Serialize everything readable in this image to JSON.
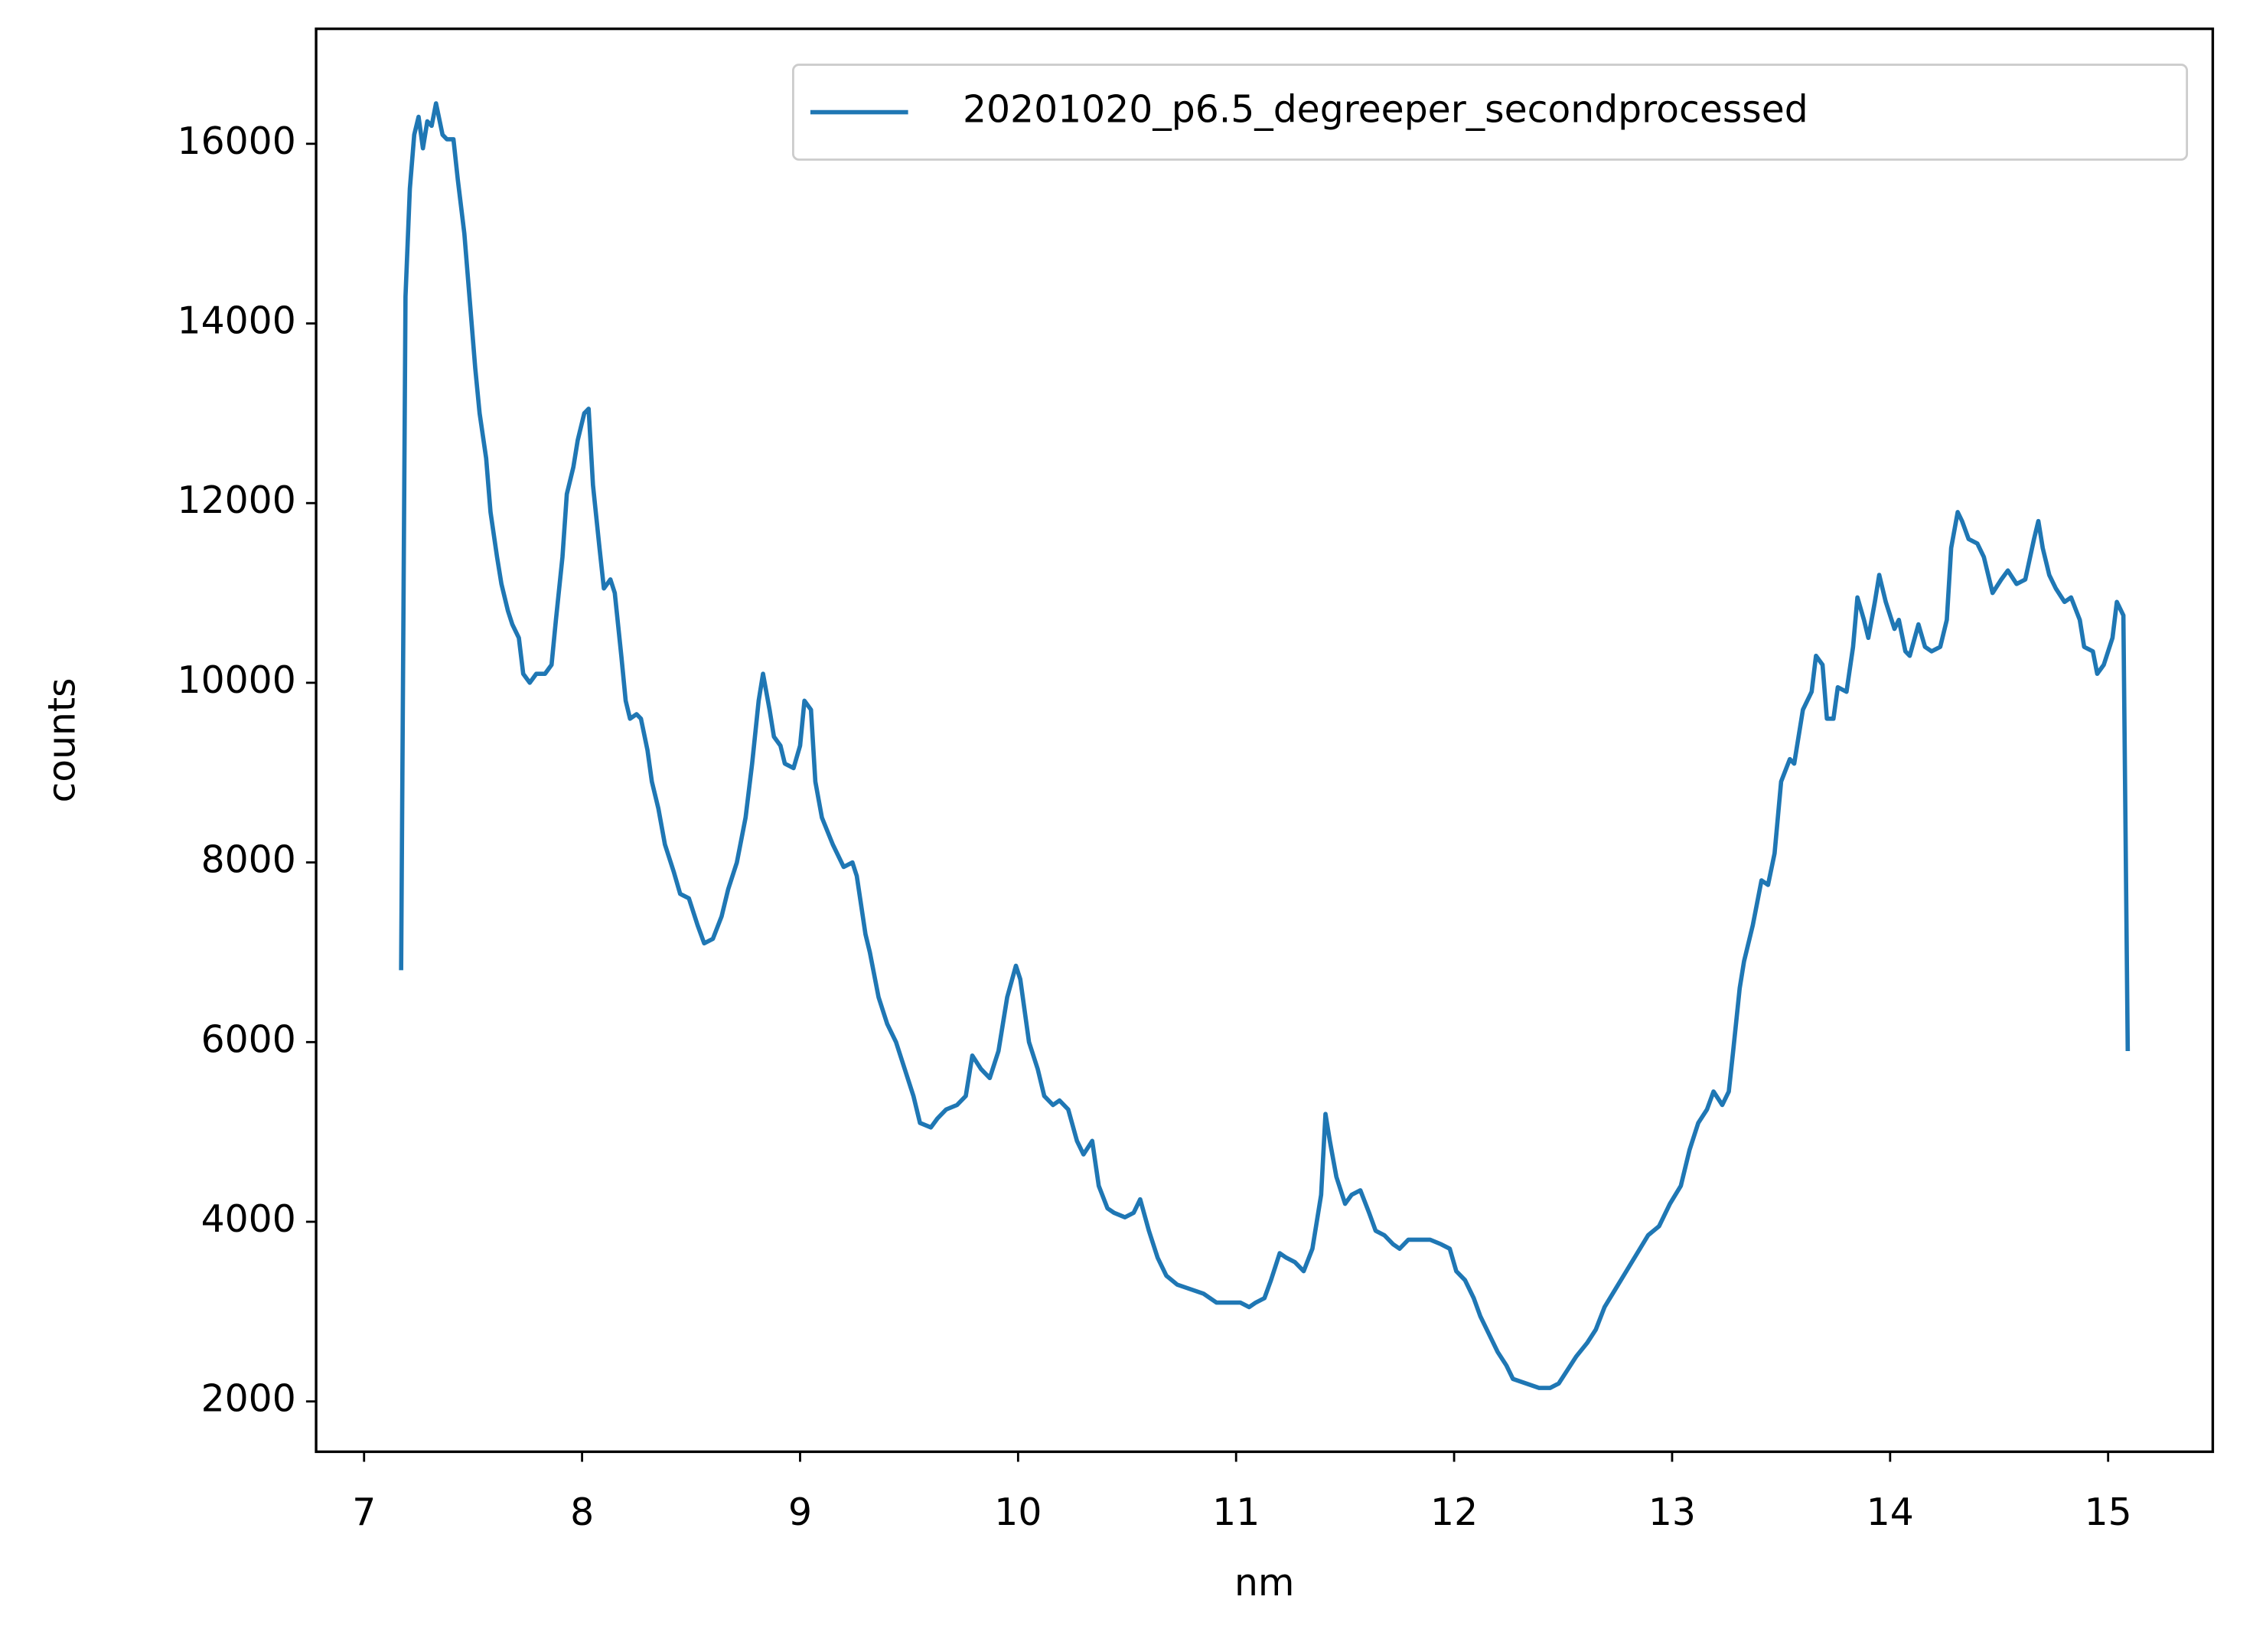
{
  "chart_data": {
    "type": "line",
    "xlabel": "nm",
    "ylabel": "counts",
    "x": [
      7.17,
      7.19,
      7.21,
      7.23,
      7.25,
      7.27,
      7.29,
      7.31,
      7.33,
      7.36,
      7.38,
      7.41,
      7.43,
      7.46,
      7.48,
      7.51,
      7.53,
      7.56,
      7.58,
      7.61,
      7.63,
      7.66,
      7.68,
      7.71,
      7.73,
      7.76,
      7.79,
      7.83,
      7.86,
      7.88,
      7.91,
      7.93,
      7.96,
      7.98,
      8.01,
      8.03,
      8.05,
      8.08,
      8.1,
      8.13,
      8.15,
      8.18,
      8.2,
      8.22,
      8.25,
      8.27,
      8.3,
      8.32,
      8.35,
      8.38,
      8.42,
      8.45,
      8.49,
      8.53,
      8.56,
      8.6,
      8.64,
      8.67,
      8.71,
      8.75,
      8.78,
      8.81,
      8.83,
      8.86,
      8.88,
      8.91,
      8.93,
      8.97,
      9.0,
      9.02,
      9.05,
      9.07,
      9.1,
      9.15,
      9.2,
      9.24,
      9.26,
      9.3,
      9.32,
      9.36,
      9.4,
      9.44,
      9.48,
      9.52,
      9.55,
      9.6,
      9.63,
      9.67,
      9.72,
      9.76,
      9.79,
      9.83,
      9.87,
      9.91,
      9.95,
      9.99,
      10.01,
      10.05,
      10.09,
      10.12,
      10.16,
      10.19,
      10.23,
      10.27,
      10.3,
      10.34,
      10.37,
      10.41,
      10.44,
      10.49,
      10.53,
      10.56,
      10.6,
      10.64,
      10.68,
      10.73,
      10.79,
      10.85,
      10.91,
      10.97,
      11.02,
      11.06,
      11.09,
      11.13,
      11.16,
      11.2,
      11.23,
      11.27,
      11.31,
      11.35,
      11.39,
      11.41,
      11.43,
      11.46,
      11.5,
      11.53,
      11.57,
      11.61,
      11.64,
      11.68,
      11.72,
      11.75,
      11.79,
      11.84,
      11.89,
      11.94,
      11.98,
      12.01,
      12.05,
      12.09,
      12.12,
      12.16,
      12.2,
      12.24,
      12.27,
      12.33,
      12.39,
      12.44,
      12.48,
      12.52,
      12.56,
      12.61,
      12.65,
      12.69,
      12.74,
      12.79,
      12.84,
      12.89,
      12.94,
      12.99,
      13.04,
      13.08,
      13.12,
      13.16,
      13.19,
      13.23,
      13.26,
      13.28,
      13.31,
      13.33,
      13.37,
      13.41,
      13.44,
      13.47,
      13.5,
      13.54,
      13.56,
      13.6,
      13.64,
      13.66,
      13.69,
      13.71,
      13.74,
      13.76,
      13.8,
      13.83,
      13.85,
      13.88,
      13.9,
      13.93,
      13.95,
      13.98,
      14.02,
      14.04,
      14.07,
      14.09,
      14.13,
      14.16,
      14.19,
      14.23,
      14.26,
      14.28,
      14.31,
      14.33,
      14.36,
      14.4,
      14.43,
      14.47,
      14.51,
      14.54,
      14.58,
      14.62,
      14.66,
      14.68,
      14.7,
      14.73,
      14.76,
      14.8,
      14.83,
      14.87,
      14.89,
      14.93,
      14.95,
      14.98,
      15.02,
      15.04,
      15.07,
      15.09
    ],
    "series": [
      {
        "name": "20201020_p6.5_degreeper_secondprocessed",
        "color": "#1f77b4",
        "values": [
          6800,
          14300,
          15500,
          16100,
          16300,
          15950,
          16250,
          16200,
          16450,
          16100,
          16050,
          16050,
          15600,
          15000,
          14400,
          13500,
          13000,
          12500,
          11900,
          11400,
          11100,
          10800,
          10650,
          10500,
          10100,
          10000,
          10100,
          10100,
          10200,
          10700,
          11400,
          12100,
          12400,
          12700,
          13000,
          13050,
          12200,
          11500,
          11050,
          11150,
          11000,
          10300,
          9800,
          9600,
          9650,
          9600,
          9250,
          8900,
          8600,
          8200,
          7900,
          7650,
          7600,
          7300,
          7100,
          7150,
          7400,
          7700,
          8000,
          8500,
          9100,
          9800,
          10100,
          9700,
          9400,
          9300,
          9100,
          9050,
          9300,
          9800,
          9700,
          8900,
          8500,
          8200,
          7950,
          8000,
          7850,
          7200,
          7000,
          6500,
          6200,
          6000,
          5700,
          5400,
          5100,
          5050,
          5150,
          5250,
          5300,
          5400,
          5850,
          5700,
          5600,
          5900,
          6500,
          6850,
          6700,
          6000,
          5700,
          5400,
          5300,
          5350,
          5250,
          4900,
          4750,
          4900,
          4400,
          4150,
          4100,
          4050,
          4100,
          4250,
          3900,
          3600,
          3400,
          3300,
          3250,
          3200,
          3100,
          3100,
          3100,
          3050,
          3100,
          3150,
          3350,
          3650,
          3600,
          3550,
          3450,
          3700,
          4300,
          5200,
          4900,
          4500,
          4200,
          4300,
          4350,
          4100,
          3900,
          3850,
          3750,
          3700,
          3800,
          3800,
          3800,
          3750,
          3700,
          3450,
          3350,
          3150,
          2950,
          2750,
          2550,
          2400,
          2250,
          2200,
          2150,
          2150,
          2200,
          2350,
          2500,
          2650,
          2800,
          3050,
          3250,
          3450,
          3650,
          3850,
          3950,
          4200,
          4400,
          4800,
          5100,
          5250,
          5450,
          5300,
          5450,
          5900,
          6600,
          6900,
          7300,
          7800,
          7750,
          8100,
          8900,
          9150,
          9100,
          9700,
          9900,
          10300,
          10200,
          9600,
          9600,
          9950,
          9900,
          10400,
          10950,
          10700,
          10500,
          10900,
          11200,
          10900,
          10600,
          10700,
          10350,
          10300,
          10650,
          10400,
          10350,
          10400,
          10700,
          11500,
          11900,
          11800,
          11600,
          11550,
          11400,
          11000,
          11150,
          11250,
          11100,
          11150,
          11600,
          11800,
          11500,
          11200,
          11050,
          10900,
          10950,
          10700,
          10400,
          10350,
          10100,
          10200,
          10500,
          10900,
          10750,
          5900
        ]
      }
    ],
    "xlim": [
      6.78,
      15.48
    ],
    "ylim": [
      1440,
      17280
    ],
    "xticks": [
      7,
      8,
      9,
      10,
      11,
      12,
      13,
      14,
      15
    ],
    "yticks": [
      2000,
      4000,
      6000,
      8000,
      10000,
      12000,
      14000,
      16000
    ],
    "legend": "upper right"
  }
}
